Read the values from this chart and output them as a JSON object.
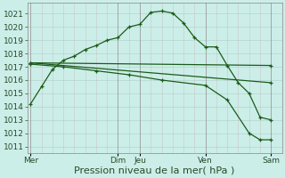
{
  "bg_color": "#cceee8",
  "plot_bg": "#cceee8",
  "grid_color_h": "#b8d8d4",
  "grid_color_v": "#c8b8b8",
  "line_color": "#1a5c1a",
  "xlabel": "Pression niveau de la mer( hPa )",
  "xlabel_fontsize": 8,
  "tick_fontsize": 6.5,
  "ylim": [
    1010.5,
    1021.8
  ],
  "yticks": [
    1011,
    1012,
    1013,
    1014,
    1015,
    1016,
    1017,
    1018,
    1019,
    1020,
    1021
  ],
  "day_labels": [
    "Mer",
    "Dim",
    "Jeu",
    "Ven",
    "Sam"
  ],
  "day_x": [
    0,
    8,
    10,
    16,
    22
  ],
  "xlim": [
    -0.3,
    23.0
  ],
  "series1_x": [
    0,
    1,
    2,
    3,
    4,
    5,
    6,
    7,
    8,
    9,
    10,
    11,
    12,
    13,
    14,
    15,
    16,
    17,
    18,
    19,
    20,
    21,
    22
  ],
  "series1_y": [
    1014.2,
    1015.5,
    1016.8,
    1017.5,
    1017.8,
    1018.3,
    1018.6,
    1019.0,
    1019.2,
    1020.0,
    1020.2,
    1021.1,
    1021.2,
    1021.05,
    1020.3,
    1019.2,
    1018.5,
    1018.5,
    1017.1,
    1015.8,
    1015.0,
    1013.2,
    1013.0
  ],
  "series2_x": [
    0,
    22
  ],
  "series2_y": [
    1017.3,
    1017.1
  ],
  "series3_x": [
    0,
    22
  ],
  "series3_y": [
    1017.3,
    1015.8
  ],
  "series4_x": [
    0,
    3,
    6,
    9,
    12,
    16,
    18,
    20,
    21,
    22
  ],
  "series4_y": [
    1017.2,
    1017.0,
    1016.7,
    1016.4,
    1016.0,
    1015.6,
    1014.5,
    1012.0,
    1011.5,
    1011.5
  ],
  "vline_positions": [
    0,
    8,
    10,
    16,
    22
  ],
  "vline_color": "#888888",
  "vline_lw": 0.7
}
